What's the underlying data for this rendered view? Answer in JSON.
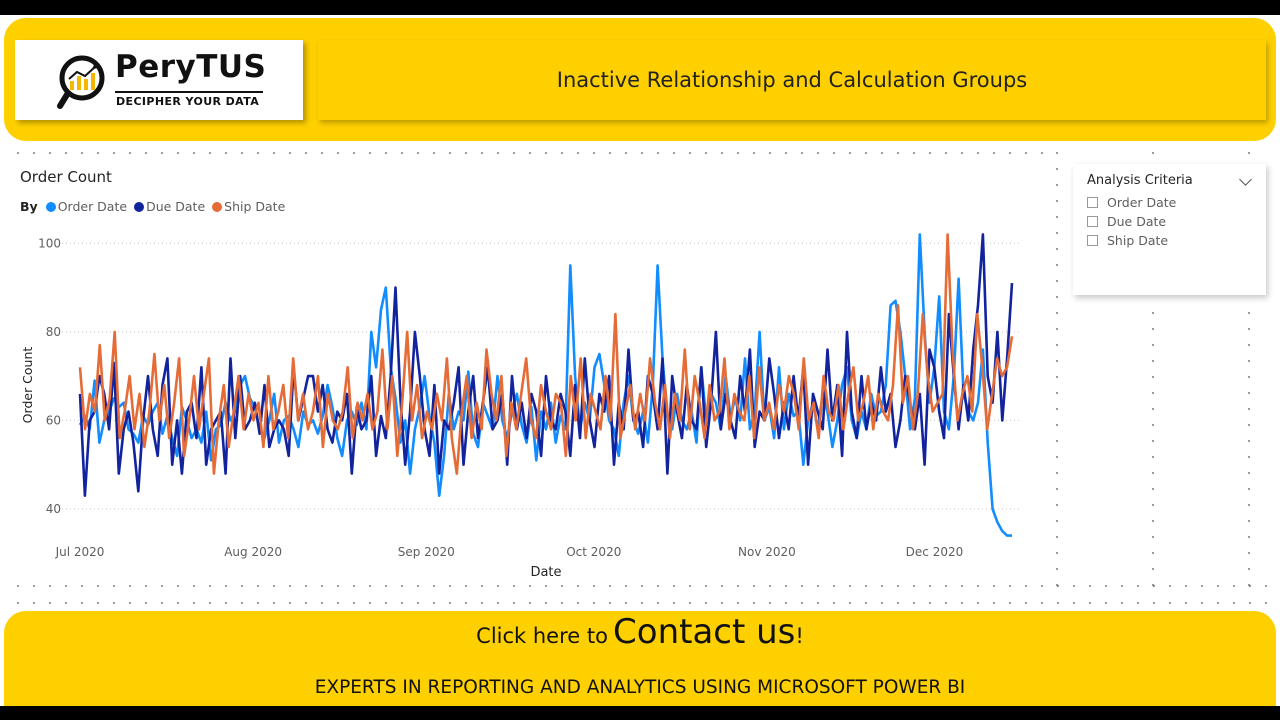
{
  "header": {
    "logo_name": "PeryTUS",
    "logo_tagline": "DECIPHER YOUR DATA",
    "title": "Inactive Relationship and Calculation Groups"
  },
  "chart_visual": {
    "title": "Order Count",
    "legend_label": "By",
    "legend_items": [
      "Order Date",
      "Due Date",
      "Ship Date"
    ]
  },
  "slicer": {
    "title": "Analysis Criteria",
    "options": [
      "Order Date",
      "Due Date",
      "Ship Date"
    ],
    "icon": "chevron-down-icon"
  },
  "footer": {
    "contact_prefix": "Click here to",
    "contact_main": "Contact us",
    "contact_suffix": "!",
    "experts": "EXPERTS IN REPORTING AND ANALYTICS USING MICROSOFT POWER BI"
  },
  "colors": {
    "brand_yellow": "#FFD000",
    "order_date": "#118DFF",
    "due_date": "#12239E",
    "ship_date": "#E66C37"
  },
  "chart_data": {
    "type": "line",
    "xlabel": "Date",
    "ylabel": "Order Count",
    "x_ticks": [
      "Jul 2020",
      "Aug 2020",
      "Sep 2020",
      "Oct 2020",
      "Nov 2020",
      "Dec 2020"
    ],
    "y_ticks": [
      40,
      60,
      80,
      100
    ],
    "ylim": [
      33,
      103
    ],
    "x_range": [
      "2020-07-01",
      "2020-12-31"
    ],
    "grid": "horizontal dotted",
    "legend_position": "top-left",
    "series": [
      {
        "name": "Order Date",
        "color": "#118DFF",
        "values": [
          59,
          61,
          58,
          69,
          55,
          60,
          62,
          65,
          63,
          64,
          58,
          57,
          55,
          61,
          59,
          62,
          64,
          57,
          61,
          56,
          52,
          63,
          60,
          56,
          58,
          55,
          62,
          51,
          58,
          59,
          64,
          60,
          62,
          68,
          70,
          65,
          63,
          58,
          56,
          60,
          66,
          55,
          60,
          61,
          58,
          54,
          62,
          59,
          60,
          57,
          61,
          68,
          63,
          56,
          52,
          60,
          62,
          59,
          64,
          58,
          80,
          72,
          85,
          90,
          72,
          65,
          55,
          60,
          48,
          58,
          63,
          70,
          61,
          55,
          43,
          52,
          66,
          58,
          62,
          60,
          71,
          57,
          54,
          64,
          61,
          58,
          70,
          60,
          56,
          62,
          66,
          59,
          55,
          63,
          51,
          62,
          58,
          64,
          55,
          61,
          58,
          95,
          70,
          58,
          64,
          60,
          72,
          75,
          68,
          60,
          58,
          52,
          64,
          70,
          60,
          57,
          62,
          55,
          68,
          95,
          74,
          61,
          58,
          66,
          60,
          58,
          62,
          55,
          72,
          60,
          66,
          64,
          58,
          70,
          61,
          65,
          60,
          74,
          58,
          62,
          80,
          60,
          63,
          56,
          72,
          58,
          66,
          61,
          62,
          50,
          60,
          64,
          58,
          66,
          62,
          54,
          60,
          68,
          72,
          60,
          56,
          62,
          58,
          66,
          61,
          62,
          68,
          86,
          87,
          80,
          70,
          58,
          65,
          102,
          80,
          64,
          72,
          88,
          62,
          58,
          70,
          92,
          66,
          62,
          60,
          64,
          76,
          55,
          40,
          37,
          35,
          34,
          34
        ]
      },
      {
        "name": "Due Date",
        "color": "#12239E",
        "values": [
          66,
          43,
          60,
          62,
          70,
          66,
          58,
          73,
          48,
          58,
          62,
          55,
          44,
          60,
          70,
          58,
          52,
          68,
          74,
          50,
          60,
          48,
          62,
          64,
          56,
          72,
          50,
          58,
          60,
          62,
          48,
          74,
          56,
          70,
          58,
          60,
          64,
          57,
          68,
          54,
          58,
          60,
          58,
          52,
          72,
          60,
          65,
          70,
          70,
          62,
          68,
          58,
          55,
          62,
          60,
          66,
          48,
          63,
          58,
          60,
          70,
          52,
          61,
          56,
          70,
          90,
          65,
          50,
          62,
          80,
          70,
          58,
          52,
          68,
          48,
          60,
          58,
          64,
          72,
          50,
          62,
          70,
          56,
          64,
          72,
          58,
          60,
          66,
          50,
          70,
          58,
          64,
          56,
          66,
          62,
          52,
          70,
          60,
          58,
          66,
          62,
          52,
          68,
          56,
          74,
          60,
          54,
          66,
          62,
          70,
          50,
          64,
          58,
          76,
          60,
          62,
          54,
          70,
          66,
          58,
          74,
          48,
          70,
          62,
          56,
          68,
          60,
          58,
          72,
          54,
          64,
          80,
          58,
          66,
          60,
          56,
          70,
          62,
          76,
          54,
          62,
          60,
          74,
          66,
          56,
          64,
          58,
          70,
          60,
          72,
          50,
          66,
          62,
          58,
          76,
          60,
          68,
          52,
          80,
          62,
          56,
          70,
          58,
          64,
          60,
          72,
          62,
          66,
          54,
          60,
          70,
          64,
          58,
          66,
          50,
          76,
          72,
          62,
          56,
          84,
          70,
          58,
          68,
          60,
          76,
          86,
          102,
          70,
          64,
          80,
          60,
          74,
          91
        ]
      },
      {
        "name": "Ship Date",
        "color": "#E66C37",
        "values": [
          72,
          58,
          66,
          62,
          77,
          60,
          65,
          80,
          56,
          62,
          70,
          58,
          66,
          54,
          62,
          75,
          60,
          68,
          56,
          64,
          74,
          52,
          60,
          70,
          58,
          66,
          74,
          48,
          60,
          68,
          54,
          62,
          70,
          58,
          66,
          60,
          64,
          54,
          70,
          58,
          62,
          68,
          56,
          74,
          60,
          66,
          58,
          62,
          70,
          54,
          66,
          60,
          58,
          62,
          72,
          56,
          64,
          60,
          66,
          58,
          62,
          76,
          58,
          70,
          52,
          64,
          80,
          60,
          68,
          56,
          62,
          58,
          66,
          60,
          74,
          56,
          48,
          62,
          70,
          56,
          64,
          58,
          76,
          66,
          60,
          70,
          52,
          64,
          58,
          66,
          74,
          60,
          56,
          68,
          62,
          58,
          66,
          64,
          52,
          70,
          60,
          74,
          56,
          66,
          62,
          58,
          70,
          60,
          84,
          56,
          62,
          68,
          58,
          66,
          60,
          74,
          64,
          58,
          68,
          56,
          66,
          60,
          76,
          58,
          70,
          64,
          56,
          68,
          60,
          62,
          74,
          58,
          66,
          62,
          60,
          70,
          56,
          72,
          60,
          64,
          58,
          68,
          62,
          70,
          66,
          58,
          74,
          60,
          64,
          56,
          70,
          62,
          60,
          68,
          58,
          66,
          72,
          60,
          64,
          70,
          58,
          66,
          62,
          60,
          68,
          86,
          64,
          70,
          58,
          66,
          84,
          70,
          62,
          64,
          66,
          102,
          76,
          60,
          66,
          70,
          62,
          84,
          72,
          58,
          66,
          74,
          70,
          72,
          79
        ]
      }
    ]
  }
}
